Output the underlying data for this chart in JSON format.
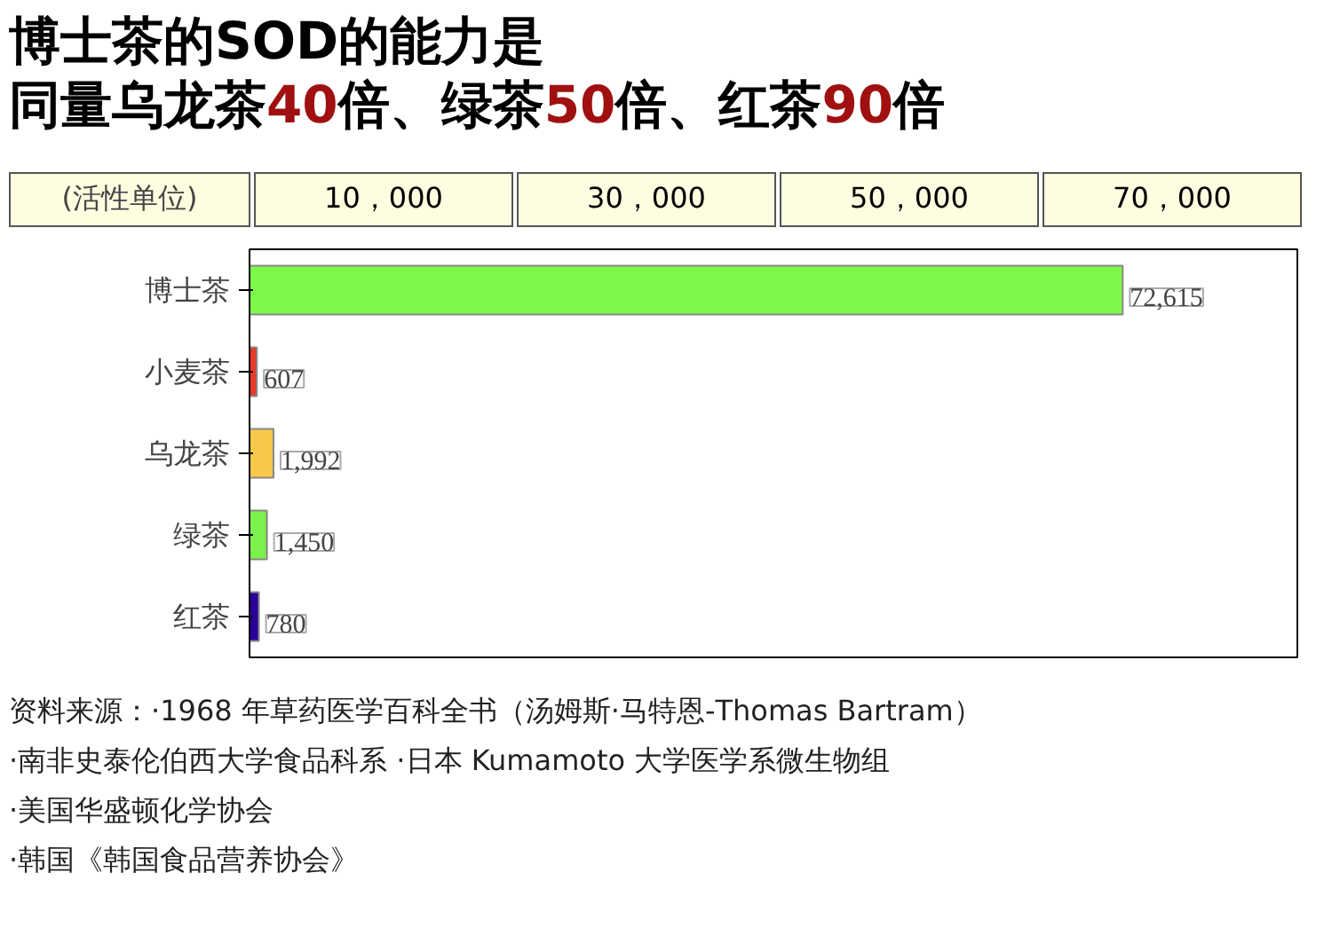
{
  "chart_data": {
    "type": "bar",
    "orientation": "horizontal",
    "title": "博士茶的SOD的能力是",
    "subtitle": "同量乌龙茶40倍、绿茶50倍、红茶90倍",
    "xlabel": "(活性单位)",
    "categories": [
      "博士茶",
      "小麦茶",
      "乌龙茶",
      "绿茶",
      "红茶"
    ],
    "values": [
      72615,
      607,
      1992,
      1450,
      780
    ],
    "colors": [
      "#7cf74a",
      "#e8392a",
      "#f7c84a",
      "#7cf04c",
      "#2a0098"
    ],
    "value_labels": [
      "72,615",
      "607",
      "1,992",
      "1,450",
      "780"
    ],
    "grid": false,
    "annotations": [
      "10，000",
      "30，000",
      "50，000",
      "70，000",
      "资料来源：·1968 年草药医学百科全书（汤姆斯·马特恩-Thomas Bartram）",
      "·南非史泰伦伯西大学食品科系 ·日本 Kumamoto 大学医学系微生物组",
      "·美国华盛顿化学协会",
      "·韩国《韩国食品营养协会》"
    ]
  }
}
